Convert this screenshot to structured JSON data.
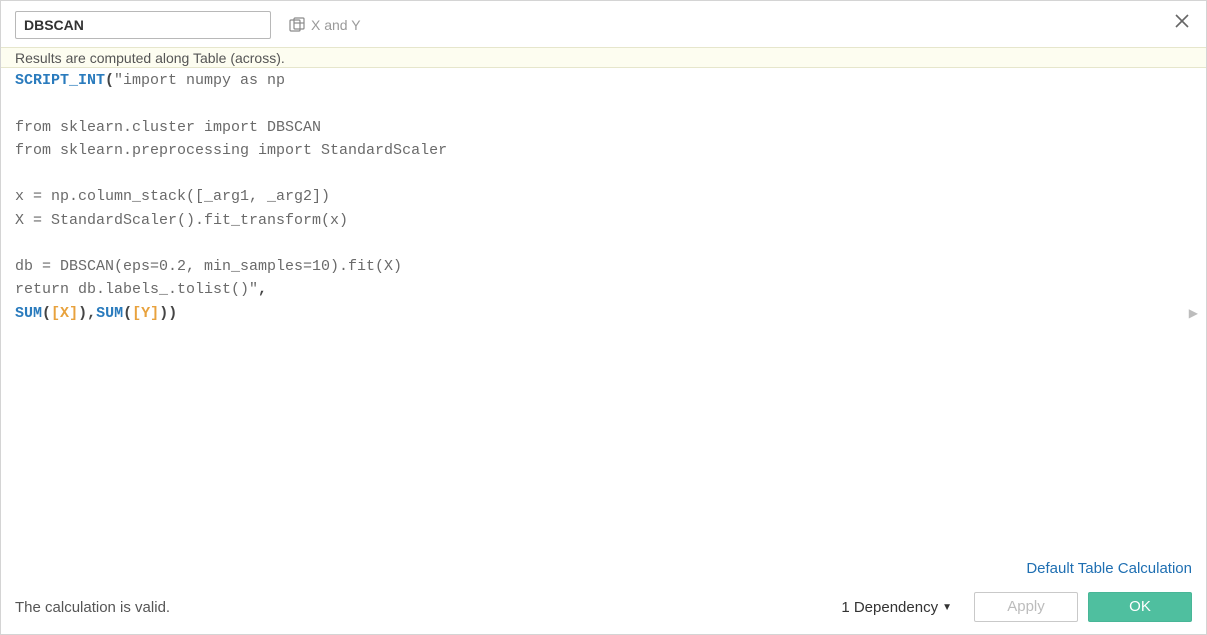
{
  "colors": {
    "function": "#2a7bbd",
    "bracket": "#e8a23d",
    "string": "#6a6a6a",
    "info_bg": "#fdfdf0",
    "link": "#1f6fb2",
    "ok_bg": "#4fbf9f",
    "border": "#d4d4d4"
  },
  "header": {
    "calc_name": "DBSCAN",
    "sheet_ref": "X and Y"
  },
  "info": {
    "compute_msg": "Results are computed along Table (across)."
  },
  "formula": {
    "fn": "SCRIPT_INT",
    "script_lines": [
      "\"import numpy as np",
      "",
      "from sklearn.cluster import DBSCAN",
      "from sklearn.preprocessing import StandardScaler",
      "",
      "x = np.column_stack([_arg1, _arg2])",
      "X = StandardScaler().fit_transform(x)",
      "",
      "db = DBSCAN(eps=0.2, min_samples=10).fit(X)",
      "return db.labels_.tolist()\""
    ],
    "agg": "SUM",
    "field_x": "X",
    "field_y": "Y",
    "paren_open": "(",
    "paren_close": ")",
    "br_open": "[",
    "br_close": "]",
    "sep": ","
  },
  "links": {
    "default_calc": "Default Table Calculation"
  },
  "footer": {
    "status": "The calculation is valid.",
    "dependency_label": "1 Dependency",
    "apply_label": "Apply",
    "ok_label": "OK"
  }
}
